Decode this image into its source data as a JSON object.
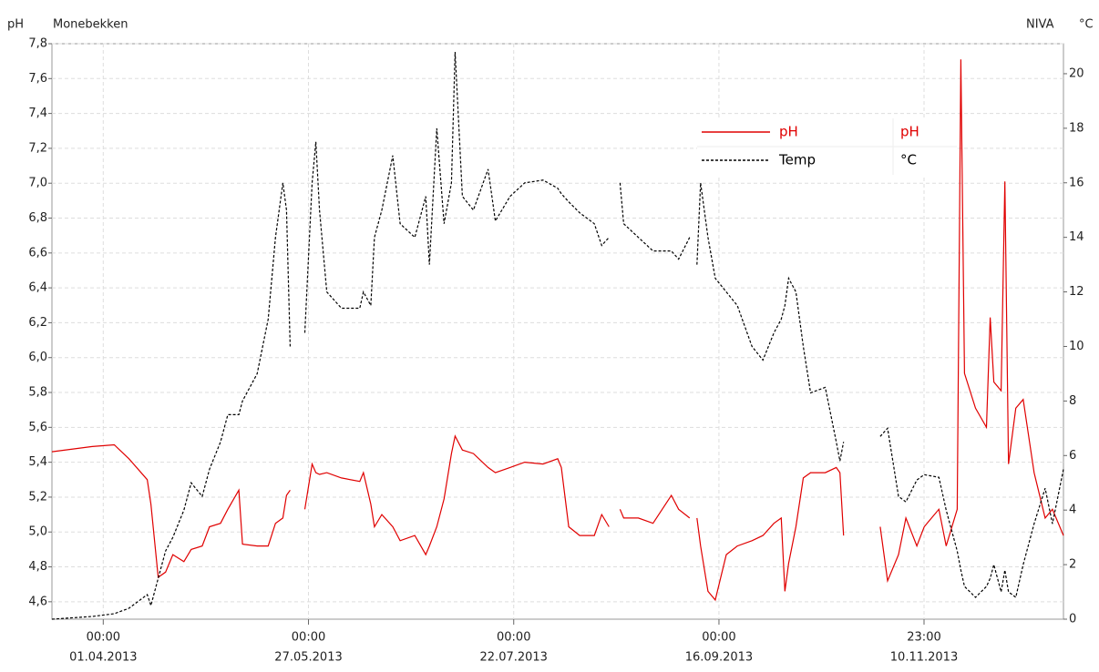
{
  "chart_data": {
    "type": "line",
    "title": "Monebekken",
    "source": "NIVA",
    "ylabel": "pH",
    "y2label": "°C",
    "ylim": [
      4.5,
      7.8
    ],
    "yticks": [
      {
        "value": 4.6,
        "label": "4,6"
      },
      {
        "value": 4.8,
        "label": "4,8"
      },
      {
        "value": 5.0,
        "label": "5,0"
      },
      {
        "value": 5.2,
        "label": "5,2"
      },
      {
        "value": 5.4,
        "label": "5,4"
      },
      {
        "value": 5.6,
        "label": "5,6"
      },
      {
        "value": 5.8,
        "label": "5,8"
      },
      {
        "value": 6.0,
        "label": "6,0"
      },
      {
        "value": 6.2,
        "label": "6,2"
      },
      {
        "value": 6.4,
        "label": "6,4"
      },
      {
        "value": 6.6,
        "label": "6,6"
      },
      {
        "value": 6.8,
        "label": "6,8"
      },
      {
        "value": 7.0,
        "label": "7,0"
      },
      {
        "value": 7.2,
        "label": "7,2"
      },
      {
        "value": 7.4,
        "label": "7,4"
      },
      {
        "value": 7.6,
        "label": "7,6"
      },
      {
        "value": 7.8,
        "label": "7,8"
      }
    ],
    "y2lim": [
      0,
      21.1
    ],
    "y2ticks": [
      0,
      2,
      4,
      6,
      8,
      10,
      12,
      14,
      16,
      18,
      20
    ],
    "xlim": [
      "18.03.2013",
      "19.12.2013"
    ],
    "xticks": [
      {
        "time": "00:00",
        "date": "01.04.2013"
      },
      {
        "time": "00:00",
        "date": "27.05.2013"
      },
      {
        "time": "00:00",
        "date": "22.07.2013"
      },
      {
        "time": "00:00",
        "date": "16.09.2013"
      },
      {
        "time": "23:00",
        "date": "10.11.2013"
      }
    ],
    "grid": true,
    "x": [
      "18.03.2013",
      "29.03.2013",
      "04.04.2013",
      "08.04.2013",
      "13.04.2013",
      "14.04.2013",
      "16.04.2013",
      "18.04.2013",
      "20.04.2013",
      "23.04.2013",
      "25.04.2013",
      "28.04.2013",
      "30.04.2013",
      "03.05.2013",
      "05.05.2013",
      "08.05.2013",
      "09.05.2013",
      "13.05.2013",
      "16.05.2013",
      "18.05.2013",
      "20.05.2013",
      "21.05.2013",
      "22.05.2013",
      "23.05.2013",
      "26.05.2013",
      "28.05.2013",
      "29.05.2013",
      "30.05.2013",
      "01.06.2013",
      "05.06.2013",
      "10.06.2013",
      "11.06.2013",
      "13.06.2013",
      "14.06.2013",
      "16.06.2013",
      "19.06.2013",
      "21.06.2013",
      "25.06.2013",
      "28.06.2013",
      "29.06.2013",
      "01.07.2013",
      "03.07.2013",
      "05.07.2013",
      "06.07.2013",
      "08.07.2013",
      "11.07.2013",
      "15.07.2013",
      "17.07.2013",
      "21.07.2013",
      "25.07.2013",
      "30.07.2013",
      "03.08.2013",
      "04.08.2013",
      "06.08.2013",
      "09.08.2013",
      "13.08.2013",
      "15.08.2013",
      "17.08.2013",
      "18.08.2013",
      "20.08.2013",
      "21.08.2013",
      "25.08.2013",
      "29.08.2013",
      "03.09.2013",
      "05.09.2013",
      "08.09.2013",
      "09.09.2013",
      "10.09.2013",
      "11.09.2013",
      "13.09.2013",
      "15.09.2013",
      "18.09.2013",
      "21.09.2013",
      "25.09.2013",
      "28.09.2013",
      "01.10.2013",
      "03.10.2013",
      "04.10.2013",
      "05.10.2013",
      "07.10.2013",
      "09.10.2013",
      "11.10.2013",
      "15.10.2013",
      "18.10.2013",
      "19.10.2013",
      "20.10.2013",
      "21.10.2013",
      "30.10.2013",
      "01.11.2013",
      "04.11.2013",
      "06.11.2013",
      "09.11.2013",
      "11.11.2013",
      "15.11.2013",
      "17.11.2013",
      "20.11.2013",
      "21.11.2013",
      "22.11.2013",
      "25.11.2013",
      "28.11.2013",
      "29.11.2013",
      "30.11.2013",
      "02.12.2013",
      "03.12.2013",
      "04.12.2013",
      "06.12.2013",
      "08.12.2013",
      "11.12.2013",
      "14.12.2013",
      "16.12.2013",
      "19.12.2013"
    ],
    "series": [
      {
        "name": "pH",
        "unit": "pH",
        "color": "#e00000",
        "line_style": "solid",
        "axis": "y",
        "values": [
          5.46,
          5.49,
          5.5,
          5.42,
          5.3,
          5.16,
          4.74,
          4.77,
          4.87,
          4.83,
          4.9,
          4.92,
          5.03,
          5.05,
          5.13,
          5.24,
          4.93,
          4.92,
          4.92,
          5.05,
          5.08,
          5.21,
          5.24,
          null,
          5.13,
          5.39,
          5.34,
          5.33,
          5.34,
          5.31,
          5.29,
          5.34,
          5.16,
          5.03,
          5.1,
          5.03,
          4.95,
          4.98,
          4.87,
          4.92,
          5.03,
          5.19,
          5.45,
          5.55,
          5.47,
          5.45,
          5.37,
          5.34,
          5.37,
          5.4,
          5.39,
          5.42,
          5.37,
          5.03,
          4.98,
          4.98,
          5.1,
          5.03,
          null,
          5.13,
          5.08,
          5.08,
          5.05,
          5.21,
          5.13,
          5.08,
          null,
          5.08,
          4.92,
          4.66,
          4.61,
          4.87,
          4.92,
          4.95,
          4.98,
          5.05,
          5.08,
          4.66,
          4.82,
          5.03,
          5.31,
          5.34,
          5.34,
          5.37,
          5.34,
          4.98,
          null,
          5.03,
          4.72,
          4.87,
          5.08,
          4.92,
          5.03,
          5.13,
          4.92,
          5.13,
          7.71,
          5.91,
          5.71,
          5.6,
          6.23,
          5.86,
          5.81,
          7.01,
          5.39,
          5.71,
          5.76,
          5.34,
          5.08,
          5.13,
          4.98
        ]
      },
      {
        "name": "Temp",
        "unit": "°C",
        "color": "#000000",
        "line_style": "dashed",
        "axis": "y2",
        "values": [
          0.0,
          0.1,
          0.2,
          0.4,
          0.9,
          0.5,
          1.5,
          2.5,
          3.0,
          4.0,
          5.0,
          4.5,
          5.5,
          6.5,
          7.5,
          7.5,
          8.0,
          9.0,
          11.0,
          14.0,
          16.0,
          15.0,
          10.0,
          null,
          10.5,
          16.0,
          17.5,
          15.0,
          12.0,
          11.4,
          11.4,
          12.0,
          11.5,
          14.0,
          15.0,
          17.0,
          14.5,
          14.0,
          15.5,
          13.0,
          18.0,
          14.5,
          16.0,
          20.8,
          15.5,
          15.0,
          16.5,
          14.6,
          15.5,
          16.0,
          16.1,
          15.8,
          15.6,
          15.3,
          14.9,
          14.5,
          13.7,
          14.0,
          null,
          16.0,
          14.5,
          14.0,
          13.5,
          13.5,
          13.2,
          14.0,
          null,
          13.0,
          16.0,
          14.0,
          12.5,
          12.0,
          11.5,
          10.0,
          9.5,
          10.5,
          11.0,
          11.5,
          12.5,
          12.0,
          10.0,
          8.3,
          8.5,
          6.5,
          5.8,
          6.5,
          null,
          6.7,
          7.0,
          4.5,
          4.3,
          5.1,
          5.3,
          5.2,
          4.0,
          2.5,
          1.8,
          1.2,
          0.8,
          1.2,
          1.5,
          2.0,
          1.0,
          1.8,
          1.0,
          0.8,
          2.0,
          3.5,
          4.8,
          3.5,
          5.5
        ]
      }
    ]
  }
}
